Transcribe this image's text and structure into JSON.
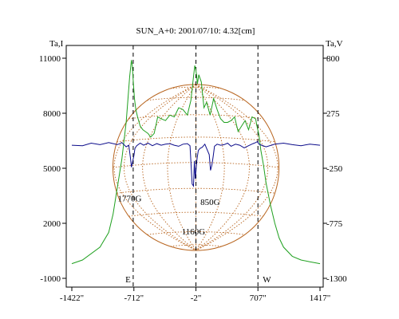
{
  "chart_data": {
    "type": "line",
    "title": "SUN_A+0: 2001/07/10: 4.32[cm]",
    "left_axis_label": "Ta,I",
    "right_axis_label": "Ta,V",
    "x_ticks": [
      "-1422\"",
      "-712\"",
      "-2\"",
      "707\"",
      "1417\""
    ],
    "x_tick_values": [
      -1422,
      -712,
      -2,
      707,
      1417
    ],
    "xlim": [
      -1422,
      1417
    ],
    "left_ticks": [
      "11000",
      "8000",
      "5000",
      "2000",
      "-1000"
    ],
    "left_tick_values": [
      11000,
      8000,
      5000,
      2000,
      -1000
    ],
    "left_ylim": [
      -1000,
      11000
    ],
    "right_ticks": [
      "800",
      "275",
      "-250",
      "-775",
      "-1300"
    ],
    "right_tick_values": [
      800,
      275,
      -250,
      -775,
      -1300
    ],
    "right_ylim": [
      -1300,
      800
    ],
    "limb_labels": [
      "E",
      "W"
    ],
    "limb_positions": [
      -720,
      707
    ],
    "center_marker": -2,
    "solar_disk": {
      "center_x": -2,
      "radius": 950,
      "color": "#b8651f"
    },
    "annotations": [
      {
        "text": "1770G",
        "x": -760,
        "y": 3200,
        "axis": "left"
      },
      {
        "text": "1160G",
        "x": -30,
        "y": 1400,
        "axis": "left"
      },
      {
        "text": "850G",
        "x": 160,
        "y": 3000,
        "axis": "left"
      }
    ],
    "series": [
      {
        "axis": "left",
        "color": "#1fa01f",
        "x": [
          -1422,
          -1300,
          -1100,
          -1000,
          -950,
          -900,
          -850,
          -800,
          -760,
          -740,
          -730,
          -720,
          -705,
          -690,
          -670,
          -640,
          -610,
          -580,
          -550,
          -520,
          -480,
          -440,
          -400,
          -350,
          -300,
          -250,
          -200,
          -150,
          -100,
          -60,
          -30,
          -15,
          -5,
          5,
          15,
          30,
          60,
          90,
          120,
          160,
          200,
          240,
          280,
          320,
          360,
          400,
          440,
          480,
          520,
          560,
          600,
          640,
          680,
          700,
          720,
          740,
          770,
          800,
          850,
          900,
          950,
          1000,
          1100,
          1200,
          1300,
          1417
        ],
        "y": [
          -200,
          0,
          700,
          1500,
          2500,
          4000,
          5500,
          7500,
          10000,
          10900,
          10600,
          9800,
          8800,
          8200,
          7800,
          7300,
          7100,
          7000,
          6900,
          6700,
          6900,
          7800,
          7700,
          7600,
          7900,
          7800,
          8300,
          8200,
          7900,
          8700,
          10000,
          10600,
          10400,
          10100,
          9600,
          10100,
          9700,
          8300,
          8600,
          7900,
          8800,
          8200,
          7700,
          7500,
          7500,
          7600,
          7800,
          7000,
          7300,
          7600,
          7100,
          7800,
          7700,
          7200,
          6800,
          6000,
          5200,
          4200,
          3000,
          2000,
          1200,
          700,
          200,
          0,
          -100,
          -200
        ]
      },
      {
        "axis": "right",
        "color": "#0b0b8a",
        "x": [
          -1422,
          -1300,
          -1200,
          -1100,
          -1000,
          -900,
          -850,
          -800,
          -770,
          -750,
          -740,
          -725,
          -712,
          -700,
          -680,
          -640,
          -600,
          -550,
          -500,
          -450,
          -400,
          -350,
          -300,
          -250,
          -200,
          -150,
          -100,
          -70,
          -45,
          -30,
          -20,
          -10,
          0,
          10,
          25,
          45,
          70,
          100,
          130,
          150,
          165,
          180,
          195,
          210,
          240,
          280,
          320,
          360,
          400,
          450,
          500,
          550,
          600,
          650,
          680,
          700,
          720,
          750,
          800,
          900,
          1000,
          1100,
          1200,
          1300,
          1417
        ],
        "y": [
          -30,
          -35,
          -10,
          -25,
          -5,
          -25,
          -5,
          -45,
          -30,
          -160,
          -240,
          -180,
          -130,
          -60,
          -35,
          -10,
          -30,
          -10,
          -35,
          -15,
          -30,
          -20,
          -15,
          -30,
          -40,
          -20,
          -15,
          -35,
          -400,
          -420,
          -180,
          -350,
          -250,
          -160,
          -80,
          -60,
          -50,
          -20,
          -80,
          -120,
          -270,
          -220,
          -140,
          -40,
          -20,
          -30,
          -25,
          -10,
          -40,
          -20,
          -30,
          -55,
          -35,
          -15,
          -5,
          5,
          -20,
          -30,
          -45,
          -20,
          -10,
          -25,
          -35,
          -20,
          -30
        ]
      }
    ]
  }
}
